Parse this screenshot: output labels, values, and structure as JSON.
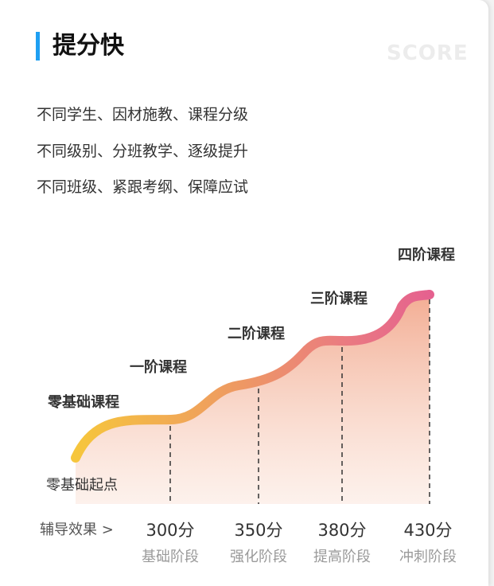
{
  "header": {
    "title": "提分快",
    "watermark": "SCORE"
  },
  "descriptions": [
    "不同学生、因材施教、课程分级",
    "不同级别、分班教学、逐级提升",
    "不同班级、紧跟考纲、保障应试"
  ],
  "diagram": {
    "start_label": "零基础起点",
    "stages": [
      "零基础课程",
      "一阶课程",
      "二阶课程",
      "三阶课程",
      "四阶课程"
    ],
    "effect_label": "辅导效果 >",
    "scores": [
      "300分",
      "350分",
      "380分",
      "430分"
    ],
    "phases": [
      "基础阶段",
      "强化阶段",
      "提高阶段",
      "冲刺阶段"
    ]
  },
  "colors": {
    "accent": "#1e9ff2",
    "curve_start": "#f6c63c",
    "curve_mid": "#ee8a6a",
    "curve_end": "#e5618f",
    "fill": "#f4b49a"
  }
}
